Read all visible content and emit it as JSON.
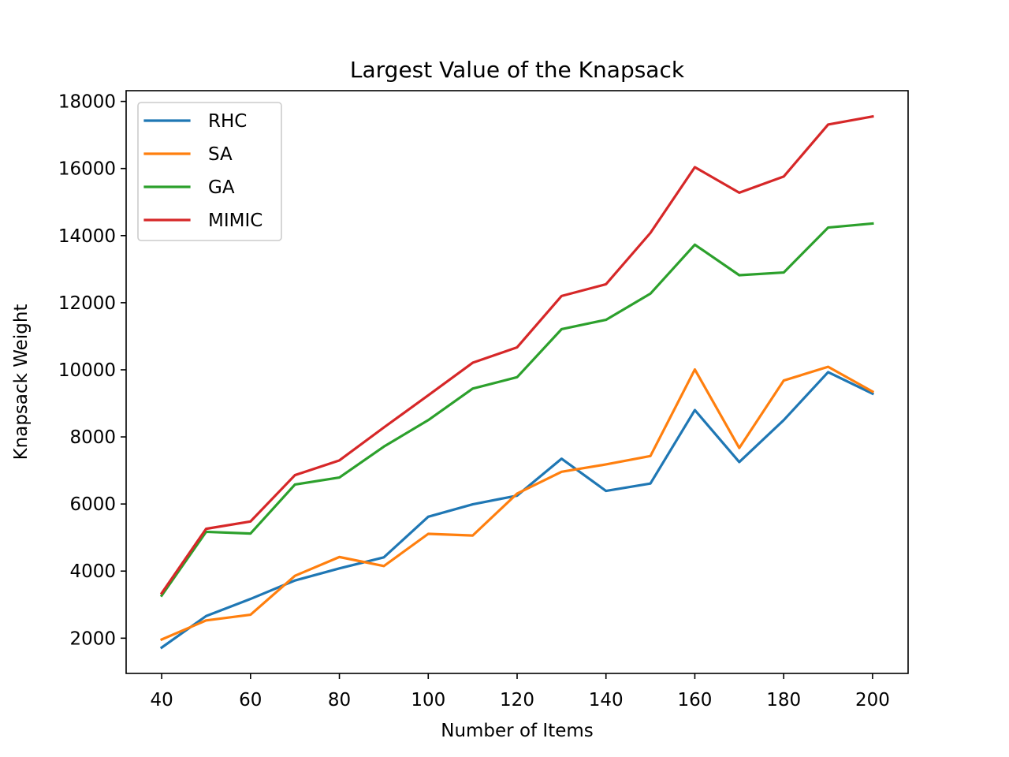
{
  "chart_data": {
    "type": "line",
    "title": "Largest Value of the Knapsack",
    "xlabel": "Number of Items",
    "ylabel": "Knapsack Weight",
    "x": [
      40,
      50,
      60,
      70,
      80,
      90,
      100,
      110,
      120,
      130,
      140,
      150,
      160,
      170,
      180,
      190,
      200
    ],
    "xlim": [
      32,
      208
    ],
    "ylim": [
      950,
      18320
    ],
    "xticks": [
      40,
      60,
      80,
      100,
      120,
      140,
      160,
      180,
      200
    ],
    "yticks": [
      2000,
      4000,
      6000,
      8000,
      10000,
      12000,
      14000,
      16000,
      18000
    ],
    "grid": false,
    "legend_position": "upper-left",
    "series": [
      {
        "name": "RHC",
        "color": "#1f77b4",
        "values": [
          1720,
          2660,
          3170,
          3720,
          4080,
          4410,
          5620,
          5990,
          6250,
          7350,
          6390,
          6610,
          8800,
          7250,
          8500,
          9930,
          9290
        ]
      },
      {
        "name": "SA",
        "color": "#ff7f0e",
        "values": [
          1960,
          2530,
          2700,
          3860,
          4420,
          4150,
          5110,
          5060,
          6310,
          6960,
          7180,
          7430,
          10010,
          7670,
          9680,
          10090,
          9350
        ]
      },
      {
        "name": "GA",
        "color": "#2ca02c",
        "values": [
          3270,
          5170,
          5120,
          6580,
          6790,
          7710,
          8500,
          9440,
          9780,
          11210,
          11490,
          12270,
          13730,
          12820,
          12900,
          14240,
          14360
        ]
      },
      {
        "name": "MIMIC",
        "color": "#d62728",
        "values": [
          3340,
          5260,
          5480,
          6860,
          7300,
          8280,
          9240,
          10210,
          10670,
          12200,
          12550,
          14080,
          16040,
          15280,
          15760,
          17310,
          17550
        ]
      }
    ]
  }
}
